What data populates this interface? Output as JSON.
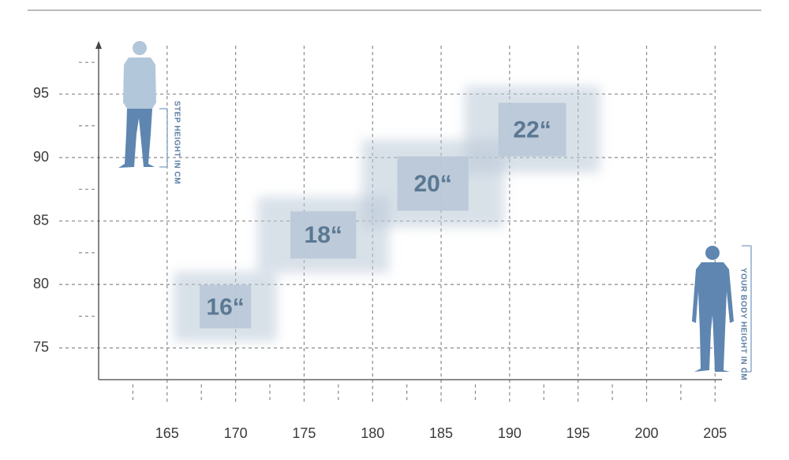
{
  "chart_data": {
    "type": "region",
    "xlim": [
      160,
      205.5
    ],
    "ylim": [
      72.5,
      99
    ],
    "xticks": [
      165,
      170,
      175,
      180,
      185,
      190,
      195,
      200,
      205
    ],
    "yticks": [
      75,
      80,
      85,
      90,
      95
    ],
    "xminorticks": [
      162.5,
      167.5,
      172.5,
      177.5,
      182.5,
      187.5,
      192.5,
      197.5,
      202.5
    ],
    "yminorticks": [
      77.5,
      82.5,
      87.5,
      92.5,
      97.5
    ],
    "grid": true,
    "color": "#b9c8d7",
    "y_annotation": "STEP HEIGHT IN CM",
    "x_annotation": "YOUR BODY HEIGHT IN CM",
    "regions": [
      {
        "label": "16“",
        "x": [
          165.5,
          173
        ],
        "y": [
          75.5,
          81
        ]
      },
      {
        "label": "18“",
        "x": [
          171.6,
          181.2
        ],
        "y": [
          80.9,
          86.9
        ]
      },
      {
        "label": "20“",
        "x": [
          179.2,
          189.6
        ],
        "y": [
          84.5,
          91.4
        ]
      },
      {
        "label": "22“",
        "x": [
          186.7,
          196.6
        ],
        "y": [
          88.8,
          95.6
        ]
      }
    ]
  }
}
